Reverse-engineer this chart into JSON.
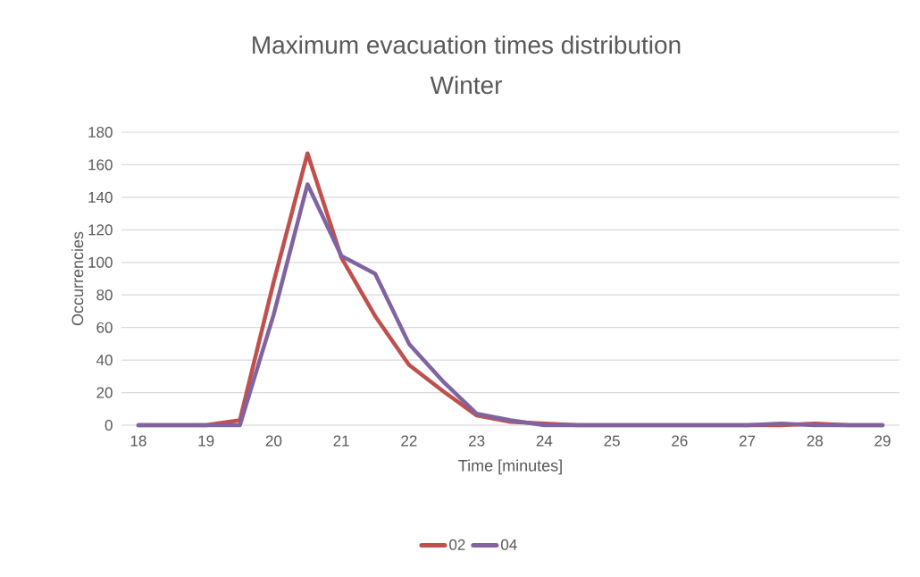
{
  "chart_data": {
    "type": "line",
    "title": "Maximum evacuation times distribution",
    "subtitle": "Winter",
    "xlabel": "Time [minutes]",
    "ylabel": "Occurrencies",
    "x": [
      18,
      18.5,
      19,
      19.5,
      20,
      20.5,
      21,
      21.5,
      22,
      22.5,
      23,
      23.5,
      24,
      24.5,
      25,
      25.5,
      26,
      26.5,
      27,
      27.5,
      28,
      28.5,
      29
    ],
    "series": [
      {
        "name": "02",
        "color": "#c0504d",
        "values": [
          0,
          0,
          0,
          3,
          88,
          167,
          103,
          67,
          37,
          21,
          6,
          2,
          1,
          0,
          0,
          0,
          0,
          0,
          0,
          0,
          1,
          0,
          0
        ]
      },
      {
        "name": "04",
        "color": "#8064a2",
        "values": [
          0,
          0,
          0,
          0,
          68,
          148,
          104,
          93,
          50,
          27,
          7,
          3,
          0,
          0,
          0,
          0,
          0,
          0,
          0,
          1,
          0,
          0,
          0
        ]
      }
    ],
    "xlim": [
      17.75,
      29.25
    ],
    "xticks": [
      18,
      19,
      20,
      21,
      22,
      23,
      24,
      25,
      26,
      27,
      28,
      29
    ],
    "ylim": [
      0,
      180
    ],
    "yticks": [
      0,
      20,
      40,
      60,
      80,
      100,
      120,
      140,
      160,
      180
    ],
    "grid": "y",
    "legend": "bottom",
    "marker": "none",
    "line_style": "solid"
  }
}
